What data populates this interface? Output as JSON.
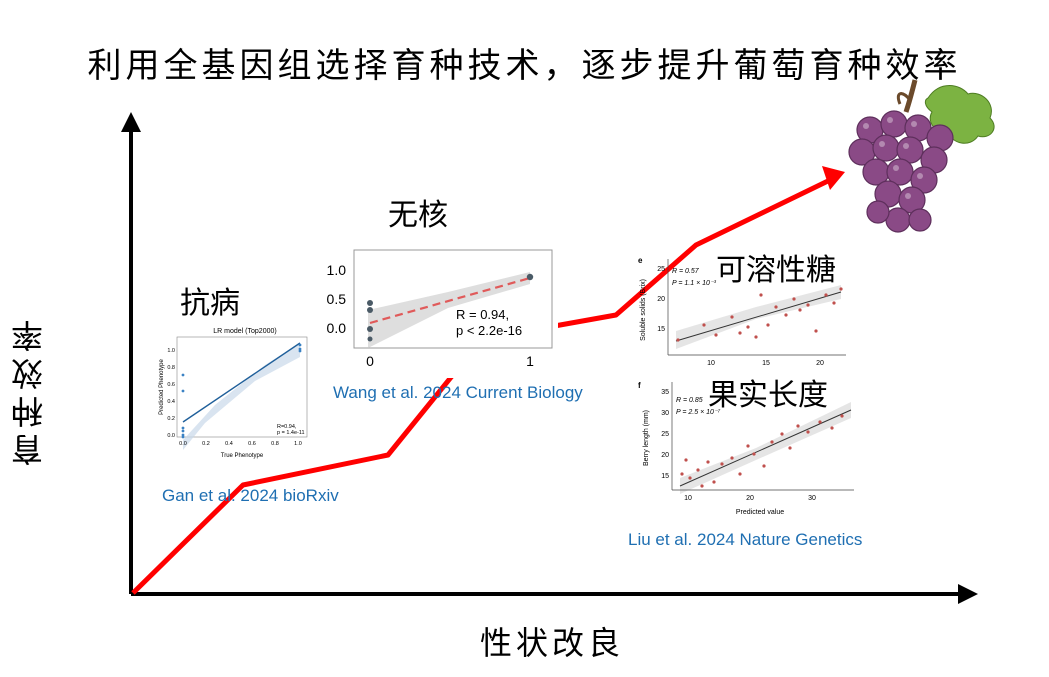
{
  "title": "利用全基因组选择育种技术，逐步提升葡萄育种效率",
  "axes": {
    "y_label": "育种效率",
    "x_label": "性状改良"
  },
  "traits": [
    {
      "label": "抗病",
      "reference": "Gan et al. 2024 bioRxiv"
    },
    {
      "label": "无核",
      "reference": "Wang et al. 2024 Current Biology"
    },
    {
      "label": "可溶性糖",
      "reference": "Liu et al. 2024 Nature Genetics"
    },
    {
      "label": "果实长度",
      "reference": ""
    }
  ],
  "plots": {
    "disease": {
      "title": "LR model (Top2000)",
      "xlabel": "True Phenotype",
      "ylabel": "Predicted Phenotype",
      "stat_r": "R=0.94,",
      "stat_p": "p = 1.4e-11",
      "x_ticks": [
        "0.0",
        "0.2",
        "0.4",
        "0.6",
        "0.8",
        "1.0"
      ],
      "y_ticks": [
        "0.0",
        "0.2",
        "0.4",
        "0.6",
        "0.8",
        "1.0"
      ]
    },
    "seedless": {
      "x_ticks": [
        "0",
        "1"
      ],
      "y_ticks": [
        "0.0",
        "0.5",
        "1.0"
      ],
      "stat_r": "R = 0.94,",
      "stat_p": "p < 2.2e-16"
    },
    "sugar": {
      "panel": "e",
      "ylabel": "Soluble solids (Brix)",
      "stat_r": "R = 0.57",
      "stat_p": "P = 1.1 × 10⁻³",
      "x_ticks": [
        "10",
        "15",
        "20"
      ],
      "y_ticks": [
        "15",
        "20",
        "25"
      ]
    },
    "length": {
      "panel": "f",
      "ylabel": "Berry length (mm)",
      "xlabel": "Predicted value",
      "stat_r": "R = 0.85",
      "stat_p": "P = 2.5 × 10⁻⁷",
      "x_ticks": [
        "10",
        "20",
        "30"
      ],
      "y_ticks": [
        "15",
        "20",
        "25",
        "30",
        "35"
      ]
    }
  },
  "colors": {
    "trend_line": "#ff0000",
    "axis": "#000000",
    "reference_text": "#1f6fb2",
    "grape": "#8a4a86",
    "leaf": "#7cb342"
  }
}
